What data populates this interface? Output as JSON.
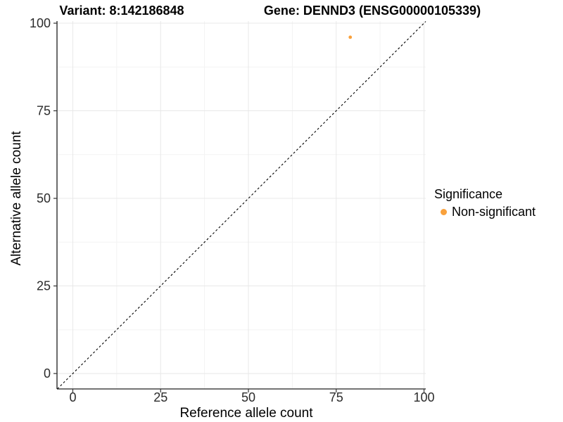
{
  "chart_data": {
    "type": "scatter",
    "titles": [
      "Variant: 8:142186848",
      "Gene: DENND3 (ENSG00000105339)"
    ],
    "xlabel": "Reference allele count",
    "ylabel": "Alternative allele count",
    "xlim": [
      -4.5,
      100.5
    ],
    "ylim": [
      -4.4,
      100.6
    ],
    "x_ticks": [
      0,
      25,
      50,
      75,
      100
    ],
    "y_ticks": [
      0,
      25,
      50,
      75,
      100
    ],
    "x_minor_ticks": [
      12.5,
      37.5,
      62.5,
      87.5
    ],
    "y_minor_ticks": [
      12.5,
      37.5,
      62.5,
      87.5
    ],
    "grid": true,
    "identity_line": {
      "style": "dashed",
      "color": "#000000",
      "from": -4.4,
      "to": 100.5
    },
    "series": [
      {
        "name": "Non-significant",
        "color": "#F9A13C",
        "points": [
          {
            "x": 79,
            "y": 96
          }
        ]
      }
    ],
    "legend": {
      "title": "Significance",
      "position": "right",
      "entries": [
        {
          "label": "Non-significant",
          "color": "#F9A13C"
        }
      ]
    },
    "colors": {
      "grid_major": "#e8e8e8",
      "grid_minor": "#f3f3f3",
      "axis_line": "#464646",
      "tick_mark": "#333333",
      "tick_label": "#2b2b2b"
    }
  }
}
